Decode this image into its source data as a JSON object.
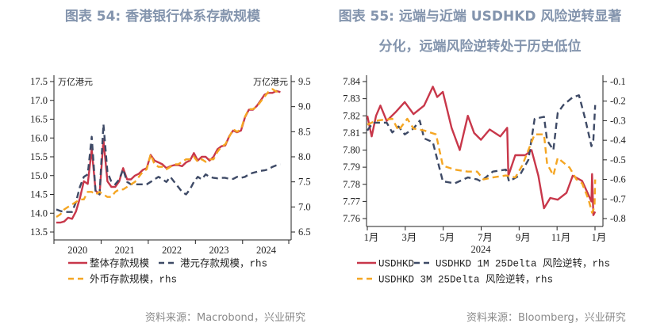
{
  "left_title": "图表 54: 香港银行体系存款规模",
  "right_title_line1": "图表 55: 远端与近端 USDHKD 风险逆转显著",
  "right_title_line2": "分化，远端风险逆转处于历史低位",
  "left_source": "资料来源：Macrobond，兴业研究",
  "right_source": "资料来源：Bloomberg，兴业研究",
  "chart_data": [
    {
      "type": "line",
      "title": "",
      "left_unit": "万亿港元",
      "right_unit": "万亿港元",
      "ylim": [
        13.5,
        17.5
      ],
      "y_ticks": [
        "13.5",
        "14.0",
        "14.5",
        "15.0",
        "15.5",
        "16.0",
        "16.5",
        "17.0",
        "17.5"
      ],
      "y2lim": [
        6.5,
        9.5
      ],
      "y2_ticks": [
        "6.5",
        "7.0",
        "7.5",
        "8.0",
        "8.5",
        "9.0",
        "9.5"
      ],
      "x_ticks": [
        "2020",
        "2021",
        "2022",
        "2023",
        "2024"
      ],
      "x_start": "2020-01",
      "grid": false,
      "legend": "bottom",
      "series": [
        {
          "name": "整体存款规模",
          "axis": "left",
          "color": "#c8374a",
          "style": "solid",
          "values": [
            13.75,
            13.75,
            13.78,
            13.88,
            13.85,
            14.05,
            14.4,
            14.85,
            14.78,
            15.7,
            14.6,
            14.5,
            15.95,
            14.85,
            14.7,
            14.7,
            14.85,
            15.2,
            14.9,
            14.9,
            15.0,
            15.05,
            15.15,
            15.2,
            15.55,
            15.4,
            15.35,
            15.3,
            15.2,
            15.25,
            15.28,
            15.28,
            15.25,
            15.35,
            15.4,
            15.6,
            15.4,
            15.5,
            15.5,
            15.4,
            15.5,
            15.7,
            15.78,
            15.8,
            16.05,
            16.2,
            16.15,
            16.2,
            16.55,
            16.75,
            16.75,
            16.85,
            17.0,
            17.15,
            17.2,
            17.2,
            17.25,
            17.22
          ]
        },
        {
          "name": "港元存款规模，rhs",
          "axis": "right",
          "color": "#3e4a66",
          "style": "dash",
          "values": [
            6.95,
            6.92,
            6.9,
            6.9,
            6.9,
            7.1,
            7.4,
            7.6,
            7.65,
            8.4,
            7.3,
            7.25,
            8.65,
            7.7,
            7.5,
            7.45,
            7.55,
            7.75,
            7.5,
            7.45,
            7.45,
            7.45,
            7.45,
            7.45,
            7.5,
            7.55,
            7.6,
            7.55,
            7.5,
            7.6,
            7.5,
            7.4,
            7.3,
            7.25,
            7.35,
            7.5,
            7.6,
            7.55,
            7.65,
            7.6,
            7.58,
            7.57,
            7.58,
            7.58,
            7.56,
            7.56,
            7.6,
            7.58,
            7.6,
            7.65,
            7.68,
            7.7,
            7.72,
            7.73,
            7.75,
            7.8,
            7.83,
            7.85
          ]
        },
        {
          "name": "外币存款规模，rhs",
          "axis": "right",
          "color": "#f5a623",
          "style": "dash",
          "values": [
            6.8,
            6.85,
            6.95,
            7.0,
            7.05,
            7.1,
            7.15,
            7.15,
            7.3,
            7.3,
            7.25,
            7.3,
            7.25,
            7.2,
            7.2,
            7.3,
            7.35,
            7.35,
            7.4,
            7.45,
            7.5,
            7.6,
            7.7,
            7.75,
            8.05,
            7.85,
            7.8,
            7.8,
            7.75,
            7.8,
            7.85,
            7.85,
            7.9,
            7.95,
            7.95,
            8.0,
            7.9,
            7.95,
            7.9,
            7.95,
            7.95,
            8.1,
            8.2,
            8.25,
            8.4,
            8.55,
            8.5,
            8.55,
            8.8,
            8.95,
            8.95,
            9.0,
            9.1,
            9.2,
            9.3,
            9.35,
            9.3,
            9.3
          ]
        }
      ]
    },
    {
      "type": "line",
      "title": "",
      "ylim": [
        7.76,
        7.84
      ],
      "y_ticks": [
        "7.76",
        "7.77",
        "7.78",
        "7.79",
        "7.80",
        "7.81",
        "7.82",
        "7.83",
        "7.84"
      ],
      "y2lim": [
        -0.8,
        -0.1
      ],
      "y2_ticks": [
        "-0.8",
        "-0.7",
        "-0.6",
        "-0.5",
        "-0.4",
        "-0.3",
        "-0.2",
        "-0.1"
      ],
      "x_ticks": [
        "1月",
        "3月",
        "5月",
        "7月",
        "9月",
        "11月",
        "1月"
      ],
      "x_label": "2024",
      "grid": false,
      "legend": "bottom",
      "series": [
        {
          "name": "USDHKD",
          "axis": "left",
          "color": "#c8374a",
          "style": "solid",
          "x": [
            "01-01",
            "01-08",
            "01-15",
            "01-22",
            "02-01",
            "02-15",
            "03-01",
            "03-15",
            "04-01",
            "04-15",
            "04-22",
            "05-01",
            "05-15",
            "05-28",
            "06-10",
            "06-20",
            "07-01",
            "07-15",
            "08-01",
            "08-12",
            "08-14",
            "08-25",
            "09-10",
            "09-20",
            "10-01",
            "10-10",
            "10-20",
            "11-01",
            "11-15",
            "11-25",
            "12-10",
            "12-20",
            "12-25",
            "12-26",
            "12-28",
            "12-31"
          ],
          "values": [
            7.82,
            7.808,
            7.82,
            7.826,
            7.817,
            7.822,
            7.828,
            7.821,
            7.826,
            7.837,
            7.831,
            7.834,
            7.813,
            7.8,
            7.82,
            7.81,
            7.806,
            7.812,
            7.808,
            7.813,
            7.785,
            7.797,
            7.797,
            7.8,
            7.785,
            7.766,
            7.772,
            7.771,
            7.775,
            7.785,
            7.782,
            7.774,
            7.77,
            7.786,
            7.762,
            7.764
          ]
        },
        {
          "name": "USDHKD 1M 25Delta 风险逆转，rhs",
          "axis": "right",
          "color": "#3e4a66",
          "style": "dash",
          "x": [
            "01-01",
            "01-10",
            "02-01",
            "02-10",
            "02-20",
            "03-01",
            "03-15",
            "03-25",
            "04-01",
            "04-15",
            "05-01",
            "05-20",
            "06-10",
            "06-25",
            "07-01",
            "07-20",
            "08-10",
            "08-15",
            "09-01",
            "09-15",
            "09-25",
            "10-10",
            "10-15",
            "10-25",
            "11-01",
            "11-10",
            "11-25",
            "12-05",
            "12-15",
            "12-25",
            "12-28",
            "12-31"
          ],
          "values": [
            -0.35,
            -0.31,
            -0.31,
            -0.36,
            -0.33,
            -0.37,
            -0.34,
            -0.3,
            -0.39,
            -0.41,
            -0.61,
            -0.62,
            -0.59,
            -0.6,
            -0.61,
            -0.56,
            -0.55,
            -0.61,
            -0.58,
            -0.5,
            -0.29,
            -0.28,
            -0.4,
            -0.45,
            -0.26,
            -0.22,
            -0.18,
            -0.17,
            -0.29,
            -0.43,
            -0.4,
            -0.22
          ]
        },
        {
          "name": "USDHKD 3M 25Delta 风险逆转，rhs",
          "axis": "right",
          "color": "#f5a623",
          "style": "dash",
          "x": [
            "01-01",
            "01-15",
            "02-10",
            "02-20",
            "03-05",
            "03-15",
            "04-01",
            "04-20",
            "05-01",
            "05-20",
            "06-10",
            "06-25",
            "07-05",
            "07-20",
            "08-10",
            "08-25",
            "09-05",
            "09-25",
            "10-10",
            "10-15",
            "10-25",
            "11-01",
            "11-20",
            "12-01",
            "12-10",
            "12-20",
            "12-26",
            "12-30",
            "12-31"
          ],
          "values": [
            -0.32,
            -0.3,
            -0.29,
            -0.35,
            -0.29,
            -0.34,
            -0.35,
            -0.37,
            -0.53,
            -0.55,
            -0.56,
            -0.56,
            -0.6,
            -0.59,
            -0.58,
            -0.59,
            -0.53,
            -0.37,
            -0.37,
            -0.52,
            -0.58,
            -0.49,
            -0.54,
            -0.6,
            -0.62,
            -0.7,
            -0.77,
            -0.74,
            -0.6
          ]
        }
      ]
    }
  ]
}
